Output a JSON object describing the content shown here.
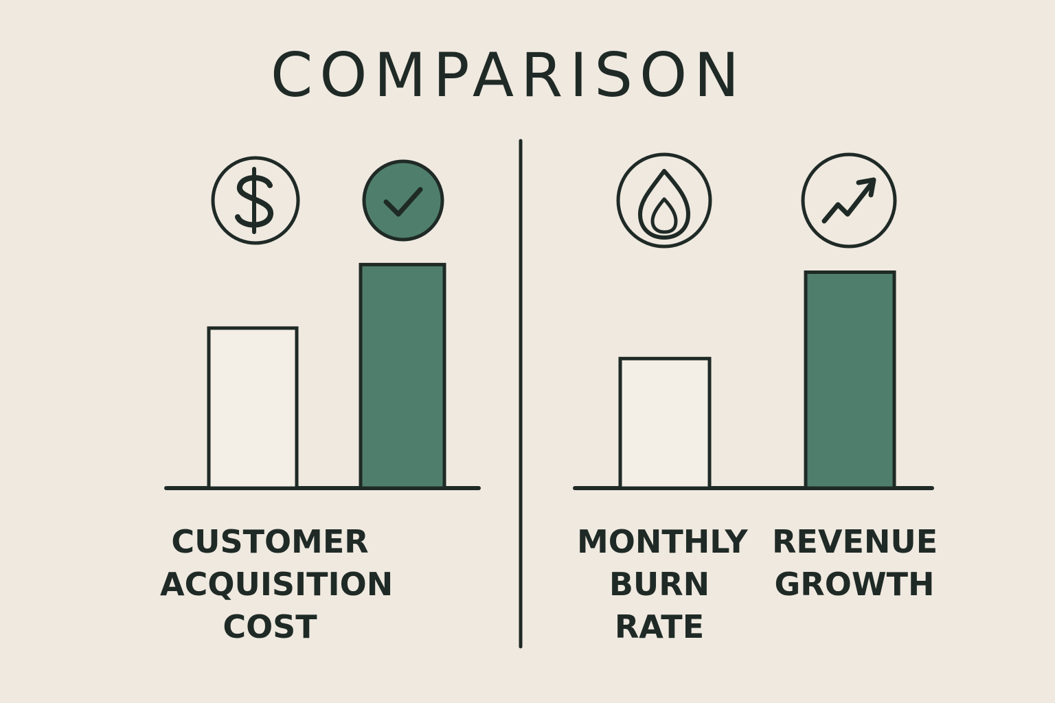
{
  "title": "COMPARISON",
  "colors": {
    "background": "#efe9e0",
    "ink": "#1f2a26",
    "accent": "#4f7f6c"
  },
  "panels": [
    {
      "label_lines": [
        "CUSTOMER",
        "ACQUISITION",
        "COST"
      ],
      "icons": [
        "dollar-icon",
        "checkmark-circle-icon"
      ],
      "bars": [
        {
          "relative_height": 0.63,
          "style": "outline"
        },
        {
          "relative_height": 0.88,
          "style": "filled"
        }
      ]
    },
    {
      "label_lines": [
        "MONTHLY",
        "BURN",
        "RATE"
      ],
      "icons": [
        "flame-icon"
      ],
      "bars": [
        {
          "relative_height": 0.51,
          "style": "outline"
        }
      ]
    },
    {
      "label_lines": [
        "REVENUE",
        "GROWTH"
      ],
      "icons": [
        "trend-up-icon"
      ],
      "bars": [
        {
          "relative_height": 0.85,
          "style": "filled"
        }
      ]
    }
  ]
}
